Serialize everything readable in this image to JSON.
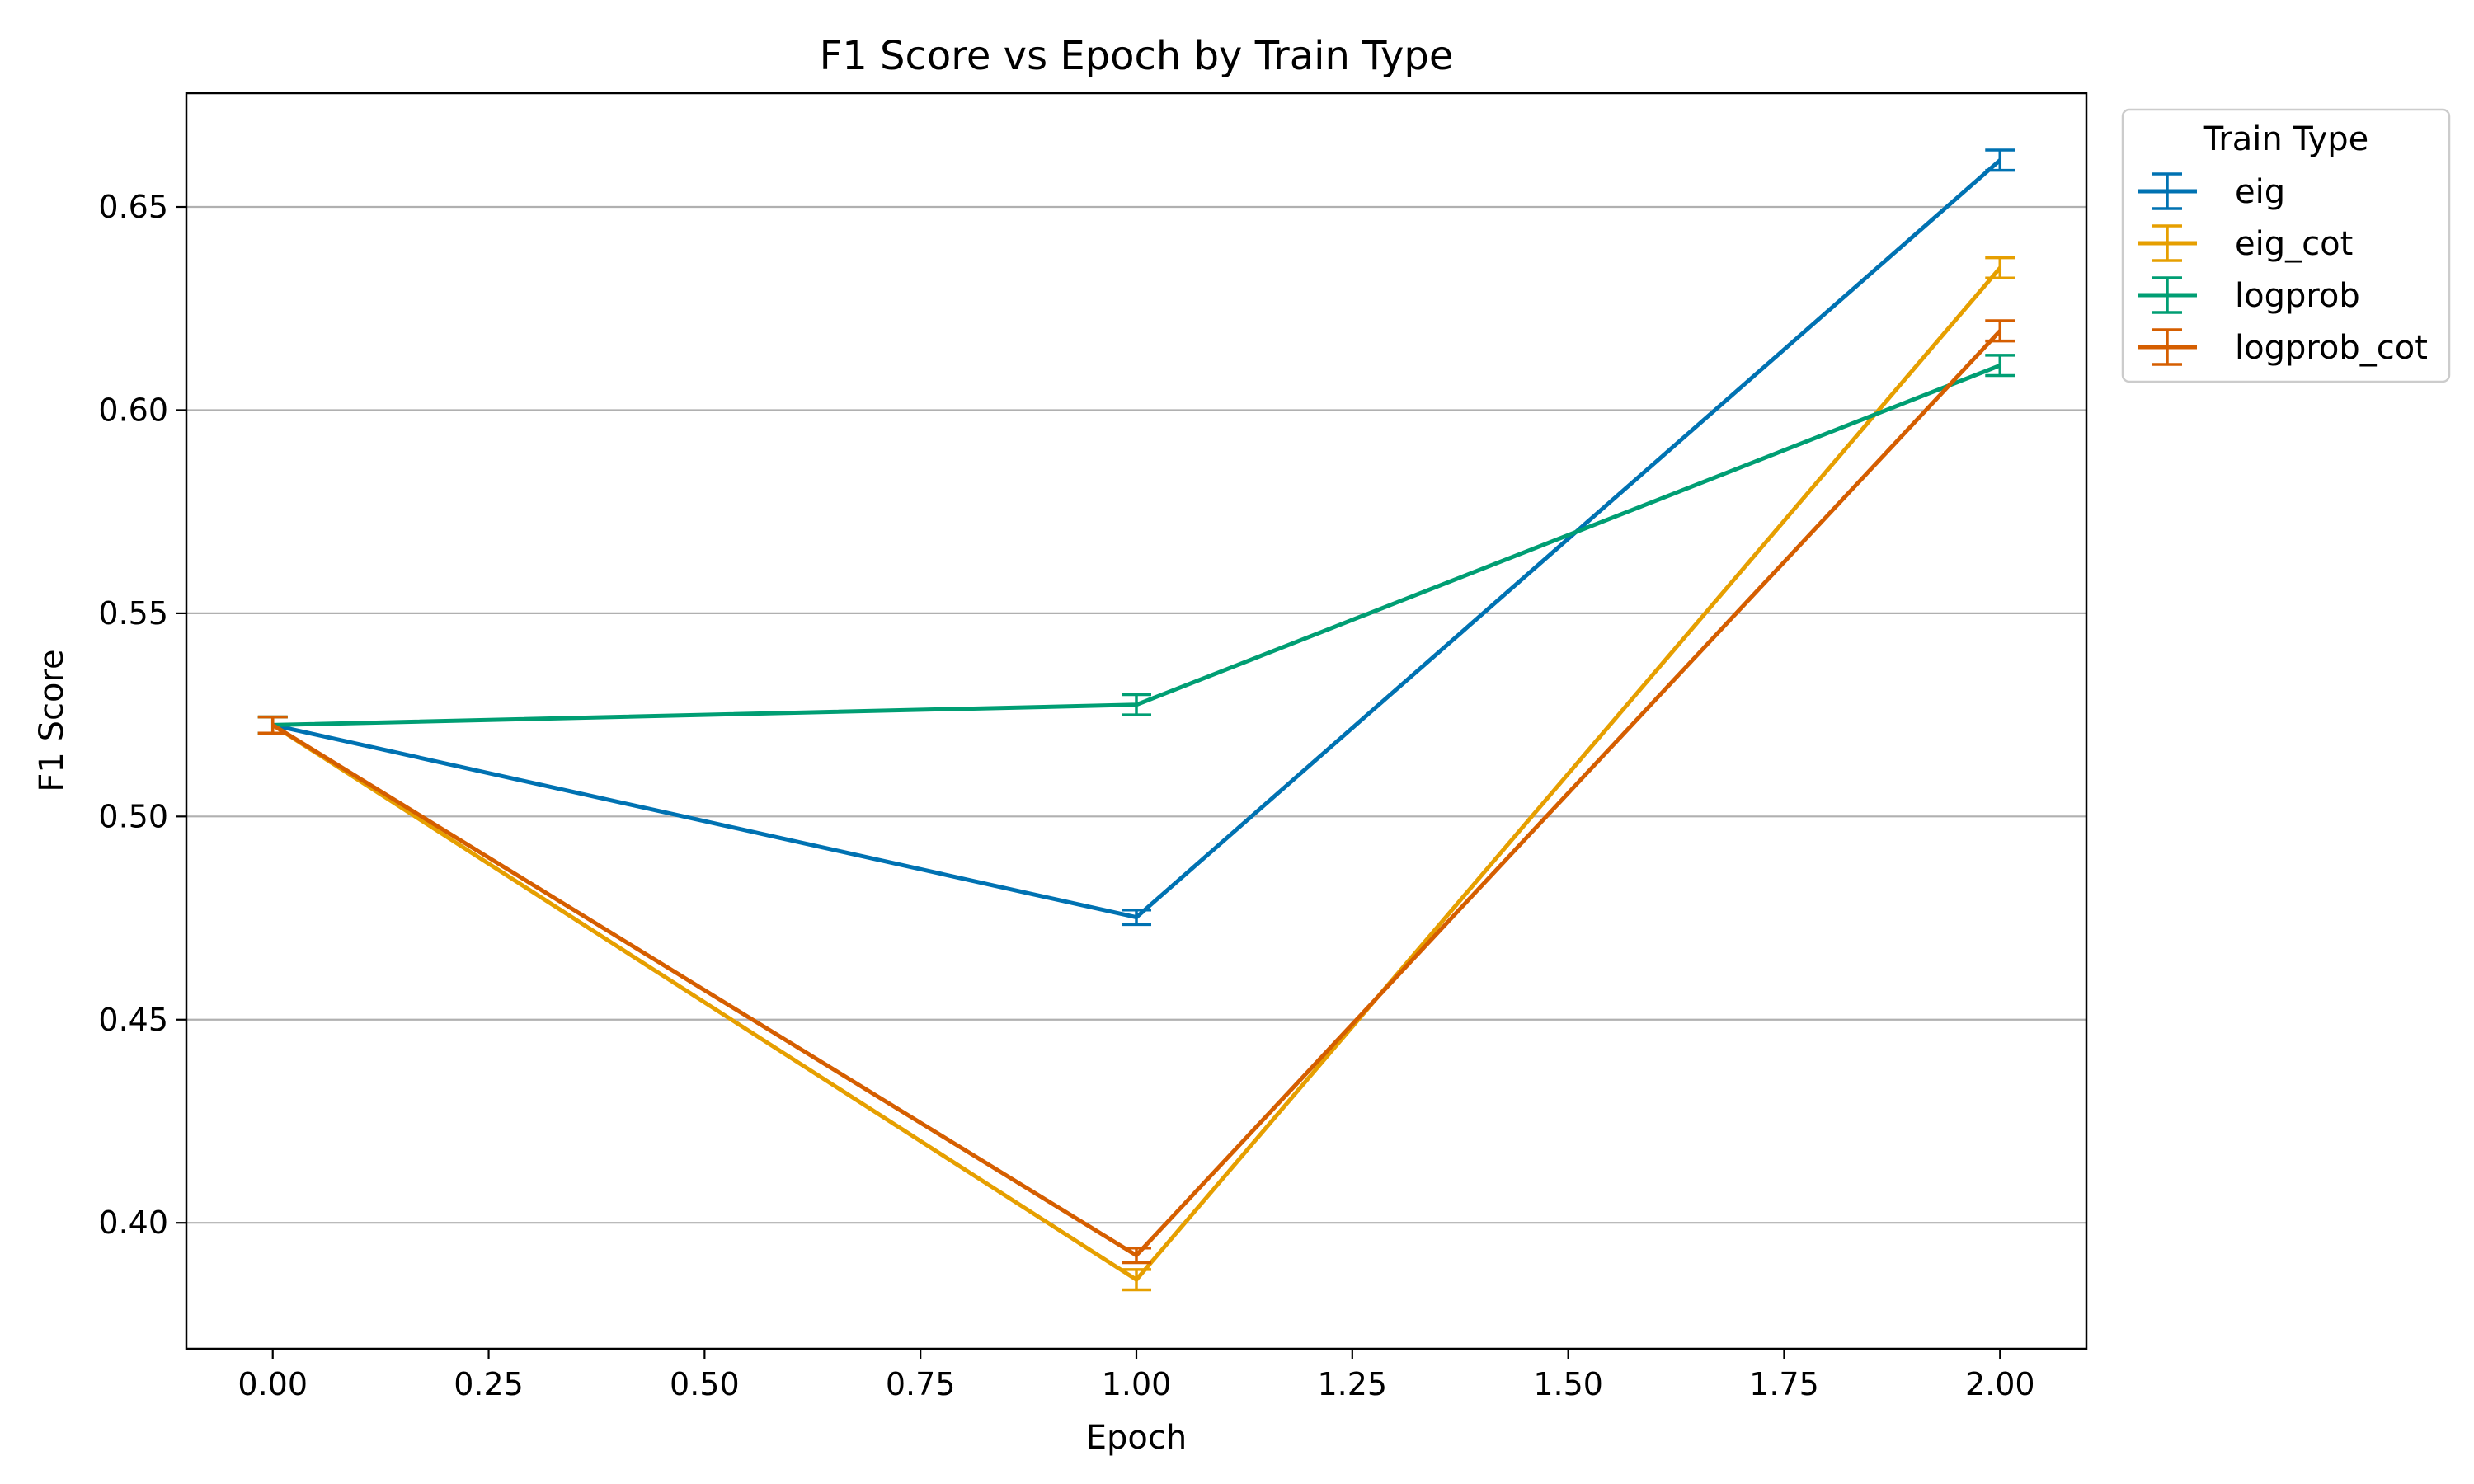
{
  "chart_data": {
    "type": "line",
    "title": "F1 Score vs Epoch by Train Type",
    "xlabel": "Epoch",
    "ylabel": "F1 Score",
    "xlim": [
      -0.1,
      2.1
    ],
    "ylim": [
      0.369,
      0.678
    ],
    "x_ticks": [
      "0.00",
      "0.25",
      "0.50",
      "0.75",
      "1.00",
      "1.25",
      "1.50",
      "1.75",
      "2.00"
    ],
    "y_ticks": [
      "0.40",
      "0.45",
      "0.50",
      "0.55",
      "0.60",
      "0.65"
    ],
    "grid": "horizontal",
    "legend": {
      "title": "Train Type",
      "placement": "outside-top-right"
    },
    "x": [
      0,
      1,
      2
    ],
    "series": [
      {
        "name": "eig",
        "color": "#0072b2",
        "values": [
          0.5225,
          0.4752,
          0.6615
        ],
        "errors": [
          0.002,
          0.0018,
          0.0025
        ]
      },
      {
        "name": "eig_cot",
        "color": "#e69f00",
        "values": [
          0.5225,
          0.386,
          0.635
        ],
        "errors": [
          0.002,
          0.0025,
          0.0025
        ]
      },
      {
        "name": "logprob",
        "color": "#009e73",
        "values": [
          0.5225,
          0.5275,
          0.611
        ],
        "errors": [
          0.002,
          0.0025,
          0.0025
        ]
      },
      {
        "name": "logprob_cot",
        "color": "#d55e00",
        "values": [
          0.5225,
          0.392,
          0.6195
        ],
        "errors": [
          0.002,
          0.0018,
          0.0025
        ]
      }
    ]
  }
}
